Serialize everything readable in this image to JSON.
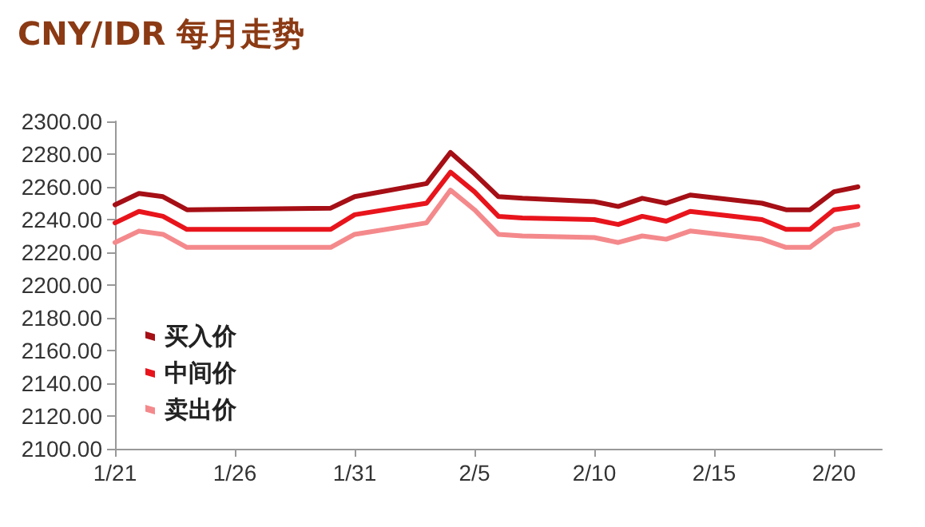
{
  "chart_data": {
    "type": "line",
    "title": "CNY/IDR 每月走势",
    "x": [
      "--01-21",
      "--01-22",
      "--01-23",
      "--01-24",
      "--01-30",
      "--01-31",
      "--02-03",
      "--02-04",
      "--02-05",
      "--02-06",
      "--02-07",
      "--02-10",
      "--02-11",
      "--02-12",
      "--02-13",
      "--02-14",
      "--02-17",
      "--02-18",
      "--02-19",
      "--02-20",
      "--02-21"
    ],
    "series": [
      {
        "name": "买入价",
        "color": "#a50f15",
        "values": [
          2249,
          2256,
          2254,
          2246,
          2247,
          2254,
          2262,
          2281,
          2268,
          2254,
          2253,
          2251,
          2248,
          2253,
          2250,
          2255,
          2250,
          2246,
          2246,
          2257,
          2260
        ]
      },
      {
        "name": "中间价",
        "color": "#e8141c",
        "values": [
          2238,
          2245,
          2242,
          2234,
          2234,
          2243,
          2250,
          2269,
          2257,
          2242,
          2241,
          2240,
          2237,
          2242,
          2239,
          2245,
          2240,
          2234,
          2234,
          2246,
          2248
        ]
      },
      {
        "name": "卖出价",
        "color": "#f4898c",
        "values": [
          2226,
          2233,
          2231,
          2223,
          2223,
          2231,
          2238,
          2258,
          2246,
          2231,
          2230,
          2229,
          2226,
          2230,
          2228,
          2233,
          2228,
          2223,
          2223,
          2234,
          2237
        ]
      }
    ],
    "xlim": [
      "--01-21",
      "--02-22"
    ],
    "xticks": [
      {
        "value": "--01-21",
        "label": "1/21"
      },
      {
        "value": "--01-26",
        "label": "1/26"
      },
      {
        "value": "--01-31",
        "label": "1/31"
      },
      {
        "value": "--02-05",
        "label": "2/5"
      },
      {
        "value": "--02-10",
        "label": "2/10"
      },
      {
        "value": "--02-15",
        "label": "2/15"
      },
      {
        "value": "--02-20",
        "label": "2/20"
      }
    ],
    "ylim": [
      2100,
      2300
    ],
    "yticks": [
      {
        "value": 2100,
        "label": "2100.00"
      },
      {
        "value": 2120,
        "label": "2120.00"
      },
      {
        "value": 2140,
        "label": "2140.00"
      },
      {
        "value": 2160,
        "label": "2160.00"
      },
      {
        "value": 2180,
        "label": "2180.00"
      },
      {
        "value": 2200,
        "label": "2200.00"
      },
      {
        "value": 2220,
        "label": "2220.00"
      },
      {
        "value": 2240,
        "label": "2240.00"
      },
      {
        "value": 2260,
        "label": "2260.00"
      },
      {
        "value": 2280,
        "label": "2280.00"
      },
      {
        "value": 2300,
        "label": "2300.00"
      }
    ],
    "grid": false,
    "legend": "bottom left",
    "marker": "none",
    "line_style": "solid"
  }
}
